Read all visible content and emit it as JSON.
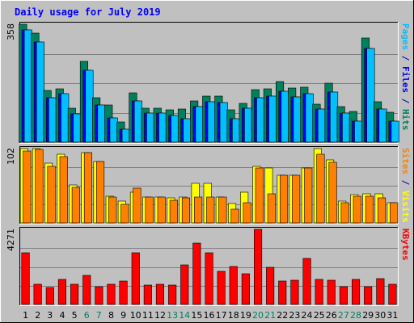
{
  "chart_data": {
    "type": "bar",
    "title": "Daily usage for July 2019",
    "categories": [
      "1",
      "2",
      "3",
      "4",
      "5",
      "6",
      "7",
      "8",
      "9",
      "10",
      "11",
      "12",
      "13",
      "14",
      "15",
      "16",
      "17",
      "18",
      "19",
      "20",
      "21",
      "22",
      "23",
      "24",
      "25",
      "26",
      "27",
      "28",
      "29",
      "30",
      "31"
    ],
    "weekend_days": [
      "6",
      "7",
      "13",
      "14",
      "20",
      "21",
      "27",
      "28"
    ],
    "panels": [
      {
        "id": "top",
        "max_label": "358",
        "max": 358,
        "legend": [
          {
            "text": "Pages",
            "color": "#00c0ff"
          },
          {
            "text": " / ",
            "color": "#0000a0"
          },
          {
            "text": "Files",
            "color": "#0000ff"
          },
          {
            "text": " / ",
            "color": "#0000a0"
          },
          {
            "text": "Hits",
            "color": "#00805c"
          }
        ],
        "series": [
          {
            "name": "Hits",
            "color": "#00805c",
            "values": [
              358,
              330,
              158,
              162,
              104,
              244,
              135,
              112,
              62,
              150,
              102,
              104,
              98,
              100,
              124,
              140,
              139,
              99,
              117,
              159,
              161,
              183,
              164,
              167,
              115,
              180,
              109,
              92,
              316,
              122,
              90
            ]
          },
          {
            "name": "Files",
            "color": "#0000ff",
            "values": [
              341,
              305,
              136,
              146,
              86,
              218,
              114,
              74,
              39,
              124,
              88,
              88,
              80,
              72,
              107,
              123,
              120,
              72,
              102,
              136,
              139,
              154,
              138,
              146,
              100,
              152,
              88,
              64,
              285,
              101,
              64
            ]
          },
          {
            "name": "Pages",
            "color": "#00c0ff",
            "values": [
              341,
              305,
              136,
              146,
              86,
              218,
              114,
              74,
              39,
              124,
              88,
              88,
              80,
              72,
              107,
              123,
              120,
              72,
              102,
              136,
              139,
              154,
              138,
              146,
              100,
              152,
              88,
              64,
              285,
              101,
              64
            ]
          }
        ]
      },
      {
        "id": "mid",
        "max_label": "102",
        "max": 102,
        "legend": [
          {
            "text": "Sites",
            "color": "#ff8000"
          },
          {
            "text": " / ",
            "color": "#0000a0"
          },
          {
            "text": "Visits",
            "color": "#ffff00"
          }
        ],
        "series": [
          {
            "name": "Visits",
            "color": "#ffff00",
            "values": [
              102,
              102,
              82,
              94,
              52,
              96,
              84,
              37,
              30,
              42,
              35,
              36,
              34,
              36,
              54,
              54,
              36,
              27,
              42,
              78,
              75,
              65,
              65,
              75,
              102,
              86,
              30,
              39,
              40,
              40,
              28
            ]
          },
          {
            "name": "Sites",
            "color": "#ff8000",
            "values": [
              99,
              101,
              78,
              91,
              49,
              96,
              84,
              35,
              26,
              48,
              35,
              35,
              31,
              34,
              35,
              35,
              35,
              19,
              28,
              75,
              40,
              65,
              65,
              75,
              94,
              83,
              28,
              37,
              37,
              34,
              28
            ]
          }
        ]
      },
      {
        "id": "bot",
        "max_label": "4271",
        "max": 4271,
        "legend": [
          {
            "text": "KBytes",
            "color": "#ff0000"
          }
        ],
        "series": [
          {
            "name": "KBytes",
            "color": "#ff0000",
            "values": [
              2945,
              1154,
              974,
              1420,
              1154,
              1642,
              1003,
              1134,
              1314,
              2957,
              1091,
              1154,
              1091,
              2261,
              3492,
              2957,
              1886,
              2165,
              1756,
              4271,
              2118,
              1314,
              1386,
              2605,
              1420,
              1386,
              1019,
              1420,
              1028,
              1467,
              1154
            ]
          }
        ]
      }
    ]
  }
}
